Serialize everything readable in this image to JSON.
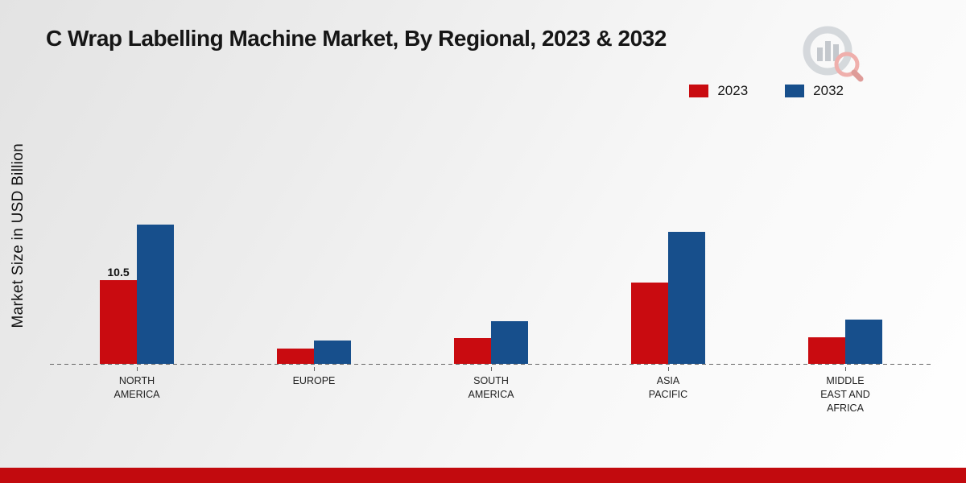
{
  "title": "C Wrap Labelling Machine Market, By Regional, 2023 & 2032",
  "ylabel": "Market Size in USD Billion",
  "legend": [
    {
      "label": "2023",
      "color": "#c90b10"
    },
    {
      "label": "2032",
      "color": "#174f8c"
    }
  ],
  "footer_color": "#c20a0e",
  "chart_data": {
    "type": "bar",
    "title": "C Wrap Labelling Machine Market, By Regional, 2023 & 2032",
    "ylabel": "Market Size in USD Billion",
    "xlabel": "",
    "categories": [
      "NORTH AMERICA",
      "EUROPE",
      "SOUTH AMERICA",
      "ASIA PACIFIC",
      "MIDDLE EAST AND AFRICA"
    ],
    "series": [
      {
        "name": "2023",
        "color": "#c90b10",
        "values": [
          10.5,
          1.9,
          3.2,
          10.2,
          3.3
        ]
      },
      {
        "name": "2032",
        "color": "#174f8c",
        "values": [
          17.5,
          2.9,
          5.4,
          16.6,
          5.6
        ]
      }
    ],
    "bar_labels": [
      [
        "10.5",
        "",
        "",
        "",
        ""
      ],
      [
        "",
        "",
        "",
        "",
        ""
      ]
    ],
    "ylim": [
      0,
      20
    ],
    "grid": false,
    "legend_position": "top-right",
    "baseline_style": "dashed"
  }
}
